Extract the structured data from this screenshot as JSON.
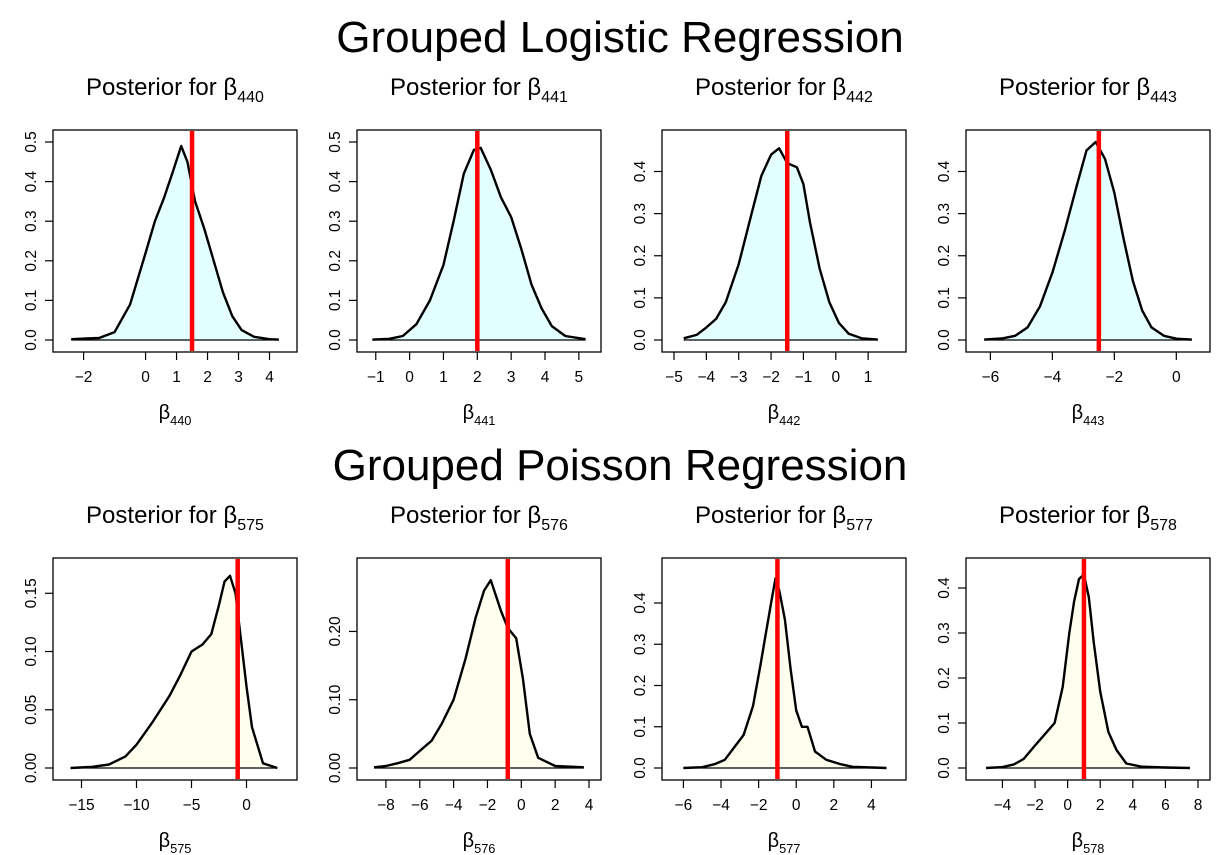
{
  "sections": [
    {
      "title": "Grouped Logistic Regression"
    },
    {
      "title": "Grouped Poisson Regression"
    }
  ],
  "colors": {
    "logistic_fill": "#e3ffff",
    "poisson_fill": "#fffff0",
    "curve": "#000000",
    "marker": "#ff0000"
  },
  "chart_data": [
    {
      "type": "area",
      "title_prefix": "Posterior for",
      "symbol": "β",
      "subscript": "440",
      "xlabel_symbol": "β",
      "xlabel_subscript": "440",
      "xlim": [
        -2.6,
        4.5
      ],
      "ylim": [
        0,
        0.5
      ],
      "xticks": [
        -2,
        0,
        1,
        2,
        3,
        4
      ],
      "yticks": [
        0,
        0.1,
        0.2,
        0.3,
        0.4,
        0.5
      ],
      "ytick_labels": [
        "0.0",
        "0.1",
        "0.2",
        "0.3",
        "0.4",
        "0.5"
      ],
      "marker_x": 1.5,
      "fill": "logistic",
      "x": [
        -2.4,
        -1.9,
        -1.5,
        -1.0,
        -0.5,
        0.0,
        0.3,
        0.6,
        0.9,
        1.15,
        1.35,
        1.6,
        1.9,
        2.2,
        2.5,
        2.8,
        3.1,
        3.5,
        4.0,
        4.3
      ],
      "y": [
        0.002,
        0.004,
        0.005,
        0.02,
        0.09,
        0.22,
        0.3,
        0.36,
        0.43,
        0.49,
        0.45,
        0.35,
        0.28,
        0.2,
        0.12,
        0.06,
        0.025,
        0.008,
        0.002,
        0.001
      ]
    },
    {
      "type": "area",
      "title_prefix": "Posterior for",
      "symbol": "β",
      "subscript": "441",
      "xlabel_symbol": "β",
      "xlabel_subscript": "441",
      "xlim": [
        -1.2,
        5.3
      ],
      "ylim": [
        0,
        0.5
      ],
      "xticks": [
        -1,
        0,
        1,
        2,
        3,
        4,
        5
      ],
      "yticks": [
        0,
        0.1,
        0.2,
        0.3,
        0.4,
        0.5
      ],
      "ytick_labels": [
        "0.0",
        "0.1",
        "0.2",
        "0.3",
        "0.4",
        "0.5"
      ],
      "marker_x": 2.0,
      "fill": "logistic",
      "x": [
        -1.1,
        -0.6,
        -0.2,
        0.2,
        0.6,
        1.0,
        1.3,
        1.6,
        1.9,
        2.1,
        2.4,
        2.7,
        3.0,
        3.3,
        3.6,
        3.9,
        4.2,
        4.6,
        5.2
      ],
      "y": [
        0.001,
        0.003,
        0.01,
        0.04,
        0.1,
        0.19,
        0.3,
        0.42,
        0.48,
        0.485,
        0.43,
        0.36,
        0.31,
        0.23,
        0.14,
        0.08,
        0.035,
        0.01,
        0.002
      ]
    },
    {
      "type": "area",
      "title_prefix": "Posterior for",
      "symbol": "β",
      "subscript": "442",
      "xlabel_symbol": "β",
      "xlabel_subscript": "442",
      "xlim": [
        -5.0,
        1.8
      ],
      "ylim": [
        0,
        0.47
      ],
      "xticks": [
        -5,
        -4,
        -3,
        -2,
        -1,
        0,
        1
      ],
      "yticks": [
        0,
        0.1,
        0.2,
        0.3,
        0.4
      ],
      "ytick_labels": [
        "0.0",
        "0.1",
        "0.2",
        "0.3",
        "0.4"
      ],
      "marker_x": -1.5,
      "fill": "logistic",
      "x": [
        -4.7,
        -4.3,
        -4.0,
        -3.7,
        -3.4,
        -3.0,
        -2.6,
        -2.3,
        -2.0,
        -1.75,
        -1.5,
        -1.2,
        -1.0,
        -0.8,
        -0.5,
        -0.2,
        0.1,
        0.4,
        0.8,
        1.3
      ],
      "y": [
        0.004,
        0.012,
        0.03,
        0.05,
        0.09,
        0.18,
        0.3,
        0.39,
        0.44,
        0.455,
        0.42,
        0.41,
        0.37,
        0.28,
        0.17,
        0.09,
        0.04,
        0.015,
        0.004,
        0.001
      ]
    },
    {
      "type": "area",
      "title_prefix": "Posterior for",
      "symbol": "β",
      "subscript": "443",
      "xlabel_symbol": "β",
      "xlabel_subscript": "443",
      "xlim": [
        -6.4,
        0.7
      ],
      "ylim": [
        0,
        0.47
      ],
      "xticks": [
        -6,
        -4,
        -2,
        0
      ],
      "yticks": [
        0,
        0.1,
        0.2,
        0.3,
        0.4
      ],
      "ytick_labels": [
        "0.0",
        "0.1",
        "0.2",
        "0.3",
        "0.4"
      ],
      "marker_x": -2.5,
      "fill": "logistic",
      "x": [
        -6.2,
        -5.6,
        -5.2,
        -4.8,
        -4.4,
        -4.0,
        -3.6,
        -3.2,
        -2.9,
        -2.6,
        -2.3,
        -2.0,
        -1.7,
        -1.4,
        -1.1,
        -0.8,
        -0.4,
        0.0,
        0.5
      ],
      "y": [
        0.001,
        0.004,
        0.01,
        0.03,
        0.08,
        0.16,
        0.26,
        0.37,
        0.45,
        0.47,
        0.43,
        0.35,
        0.24,
        0.14,
        0.07,
        0.03,
        0.01,
        0.003,
        0.001
      ]
    },
    {
      "type": "area",
      "title_prefix": "Posterior for",
      "symbol": "β",
      "subscript": "575",
      "xlabel_symbol": "β",
      "xlabel_subscript": "575",
      "xlim": [
        -16.5,
        3.5
      ],
      "ylim": [
        0,
        0.17
      ],
      "xticks": [
        -15,
        -10,
        -5,
        0
      ],
      "yticks": [
        0,
        0.05,
        0.1,
        0.15
      ],
      "ytick_labels": [
        "0.00",
        "0.05",
        "0.10",
        "0.15"
      ],
      "marker_x": -0.8,
      "fill": "poisson",
      "x": [
        -16.0,
        -14.0,
        -12.5,
        -11.0,
        -10.0,
        -8.5,
        -7.0,
        -6.0,
        -5.0,
        -4.0,
        -3.2,
        -2.5,
        -2.0,
        -1.5,
        -1.0,
        -0.5,
        0.0,
        0.5,
        1.5,
        2.8
      ],
      "y": [
        0.0,
        0.001,
        0.003,
        0.01,
        0.02,
        0.04,
        0.062,
        0.08,
        0.1,
        0.106,
        0.115,
        0.14,
        0.16,
        0.165,
        0.15,
        0.11,
        0.07,
        0.035,
        0.004,
        0.0
      ]
    },
    {
      "type": "area",
      "title_prefix": "Posterior for",
      "symbol": "β",
      "subscript": "576",
      "xlabel_symbol": "β",
      "xlabel_subscript": "576",
      "xlim": [
        -9.0,
        4.0
      ],
      "ylim": [
        0,
        0.29
      ],
      "xticks": [
        -8,
        -6,
        -4,
        -2,
        0,
        2,
        4
      ],
      "yticks": [
        0,
        0.1,
        0.2
      ],
      "ytick_labels": [
        "0.00",
        "0.10",
        "0.20"
      ],
      "marker_x": -0.8,
      "fill": "poisson",
      "x": [
        -8.7,
        -8.0,
        -7.3,
        -6.6,
        -6.0,
        -5.3,
        -4.7,
        -4.0,
        -3.3,
        -2.7,
        -2.2,
        -1.8,
        -1.2,
        -0.8,
        -0.3,
        0.1,
        0.5,
        1.0,
        2.0,
        3.7
      ],
      "y": [
        0.001,
        0.003,
        0.007,
        0.012,
        0.025,
        0.04,
        0.065,
        0.1,
        0.16,
        0.22,
        0.26,
        0.275,
        0.23,
        0.205,
        0.19,
        0.13,
        0.05,
        0.015,
        0.003,
        0.001
      ]
    },
    {
      "type": "area",
      "title_prefix": "Posterior for",
      "symbol": "β",
      "subscript": "577",
      "xlabel_symbol": "β",
      "xlabel_subscript": "577",
      "xlim": [
        -6.5,
        5.2
      ],
      "ylim": [
        0,
        0.48
      ],
      "xticks": [
        -6,
        -4,
        -2,
        0,
        2,
        4
      ],
      "yticks": [
        0,
        0.1,
        0.2,
        0.3,
        0.4
      ],
      "ytick_labels": [
        "0.0",
        "0.1",
        "0.2",
        "0.3",
        "0.4"
      ],
      "marker_x": -1.0,
      "fill": "poisson",
      "x": [
        -6.0,
        -5.0,
        -4.3,
        -3.8,
        -3.3,
        -2.8,
        -2.3,
        -1.9,
        -1.6,
        -1.3,
        -1.1,
        -0.9,
        -0.6,
        -0.3,
        0.0,
        0.3,
        0.6,
        1.0,
        1.6,
        2.3,
        3.0,
        4.8
      ],
      "y": [
        0.0,
        0.002,
        0.01,
        0.02,
        0.05,
        0.08,
        0.15,
        0.25,
        0.33,
        0.41,
        0.46,
        0.43,
        0.36,
        0.24,
        0.14,
        0.1,
        0.1,
        0.04,
        0.02,
        0.01,
        0.003,
        0.0
      ]
    },
    {
      "type": "area",
      "title_prefix": "Posterior for",
      "symbol": "β",
      "subscript": "578",
      "xlabel_symbol": "β",
      "xlabel_subscript": "578",
      "xlim": [
        -5.5,
        8.0
      ],
      "ylim": [
        0,
        0.44
      ],
      "xticks": [
        -4,
        -2,
        0,
        2,
        4,
        6,
        8
      ],
      "yticks": [
        0,
        0.1,
        0.2,
        0.3,
        0.4
      ],
      "ytick_labels": [
        "0.0",
        "0.1",
        "0.2",
        "0.3",
        "0.4"
      ],
      "marker_x": 1.0,
      "fill": "poisson",
      "x": [
        -5.0,
        -4.0,
        -3.3,
        -2.7,
        -2.0,
        -1.4,
        -0.8,
        -0.3,
        0.1,
        0.4,
        0.7,
        1.0,
        1.3,
        1.6,
        2.0,
        2.5,
        3.0,
        3.6,
        4.5,
        6.0,
        7.5
      ],
      "y": [
        0.0,
        0.002,
        0.008,
        0.02,
        0.05,
        0.075,
        0.1,
        0.18,
        0.3,
        0.37,
        0.42,
        0.43,
        0.38,
        0.28,
        0.17,
        0.08,
        0.04,
        0.01,
        0.003,
        0.001,
        0.0
      ]
    }
  ]
}
